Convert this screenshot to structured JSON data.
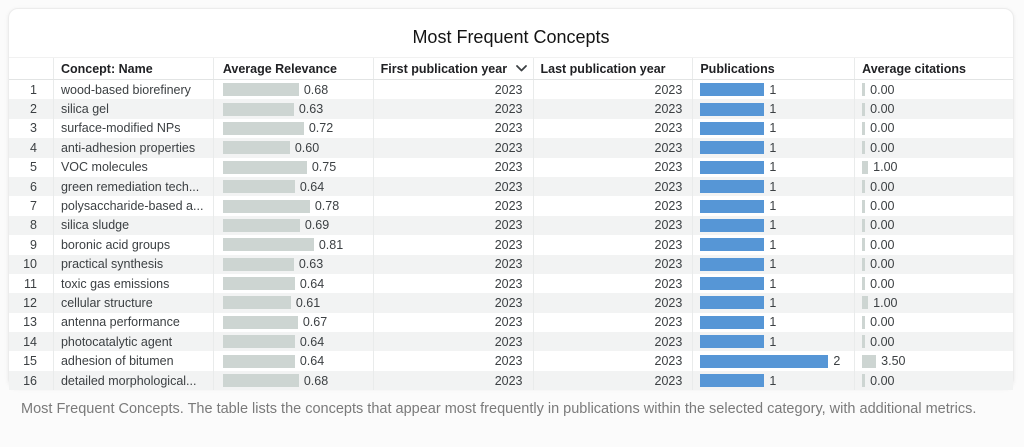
{
  "card": {
    "title": "Most Frequent Concepts"
  },
  "table": {
    "columns": {
      "index": "",
      "name": "Concept: Name",
      "relevance": "Average Relevance",
      "first_year": "First publication year",
      "last_year": "Last publication year",
      "publications": "Publications",
      "citations": "Average citations"
    },
    "sort": {
      "column": "first_year",
      "icon": "chevron-down-icon"
    },
    "rows": [
      {
        "index": 1,
        "name": "wood-based biorefinery",
        "relevance": 0.68,
        "first_year": "2023",
        "last_year": "2023",
        "publications": 1,
        "citations": 0
      },
      {
        "index": 2,
        "name": "silica gel",
        "relevance": 0.63,
        "first_year": "2023",
        "last_year": "2023",
        "publications": 1,
        "citations": 0
      },
      {
        "index": 3,
        "name": "surface-modified NPs",
        "relevance": 0.72,
        "first_year": "2023",
        "last_year": "2023",
        "publications": 1,
        "citations": 0
      },
      {
        "index": 4,
        "name": "anti-adhesion properties",
        "relevance": 0.6,
        "first_year": "2023",
        "last_year": "2023",
        "publications": 1,
        "citations": 0
      },
      {
        "index": 5,
        "name": "VOC molecules",
        "relevance": 0.75,
        "first_year": "2023",
        "last_year": "2023",
        "publications": 1,
        "citations": 1
      },
      {
        "index": 6,
        "name": "green remediation tech...",
        "relevance": 0.64,
        "first_year": "2023",
        "last_year": "2023",
        "publications": 1,
        "citations": 0
      },
      {
        "index": 7,
        "name": "polysaccharide-based a...",
        "relevance": 0.78,
        "first_year": "2023",
        "last_year": "2023",
        "publications": 1,
        "citations": 0
      },
      {
        "index": 8,
        "name": "silica sludge",
        "relevance": 0.69,
        "first_year": "2023",
        "last_year": "2023",
        "publications": 1,
        "citations": 0
      },
      {
        "index": 9,
        "name": "boronic acid groups",
        "relevance": 0.81,
        "first_year": "2023",
        "last_year": "2023",
        "publications": 1,
        "citations": 0
      },
      {
        "index": 10,
        "name": "practical synthesis",
        "relevance": 0.63,
        "first_year": "2023",
        "last_year": "2023",
        "publications": 1,
        "citations": 0
      },
      {
        "index": 11,
        "name": "toxic gas emissions",
        "relevance": 0.64,
        "first_year": "2023",
        "last_year": "2023",
        "publications": 1,
        "citations": 0
      },
      {
        "index": 12,
        "name": "cellular structure",
        "relevance": 0.61,
        "first_year": "2023",
        "last_year": "2023",
        "publications": 1,
        "citations": 1
      },
      {
        "index": 13,
        "name": "antenna performance",
        "relevance": 0.67,
        "first_year": "2023",
        "last_year": "2023",
        "publications": 1,
        "citations": 0
      },
      {
        "index": 14,
        "name": "photocatalytic agent",
        "relevance": 0.64,
        "first_year": "2023",
        "last_year": "2023",
        "publications": 1,
        "citations": 0
      },
      {
        "index": 15,
        "name": "adhesion of bitumen",
        "relevance": 0.64,
        "first_year": "2023",
        "last_year": "2023",
        "publications": 2,
        "citations": 3.5
      },
      {
        "index": 16,
        "name": "detailed morphological...",
        "relevance": 0.68,
        "first_year": "2023",
        "last_year": "2023",
        "publications": 1,
        "citations": 0
      }
    ]
  },
  "caption": "Most Frequent Concepts. The table lists the concepts that appear most frequently in publications within the selected category, with additional metrics.",
  "colors": {
    "publications_bar": "#5696d6",
    "relevance_bar": "#cdd5d2",
    "citations_bar": "#cdd5d2",
    "row_alt": "#f2f3f3"
  }
}
